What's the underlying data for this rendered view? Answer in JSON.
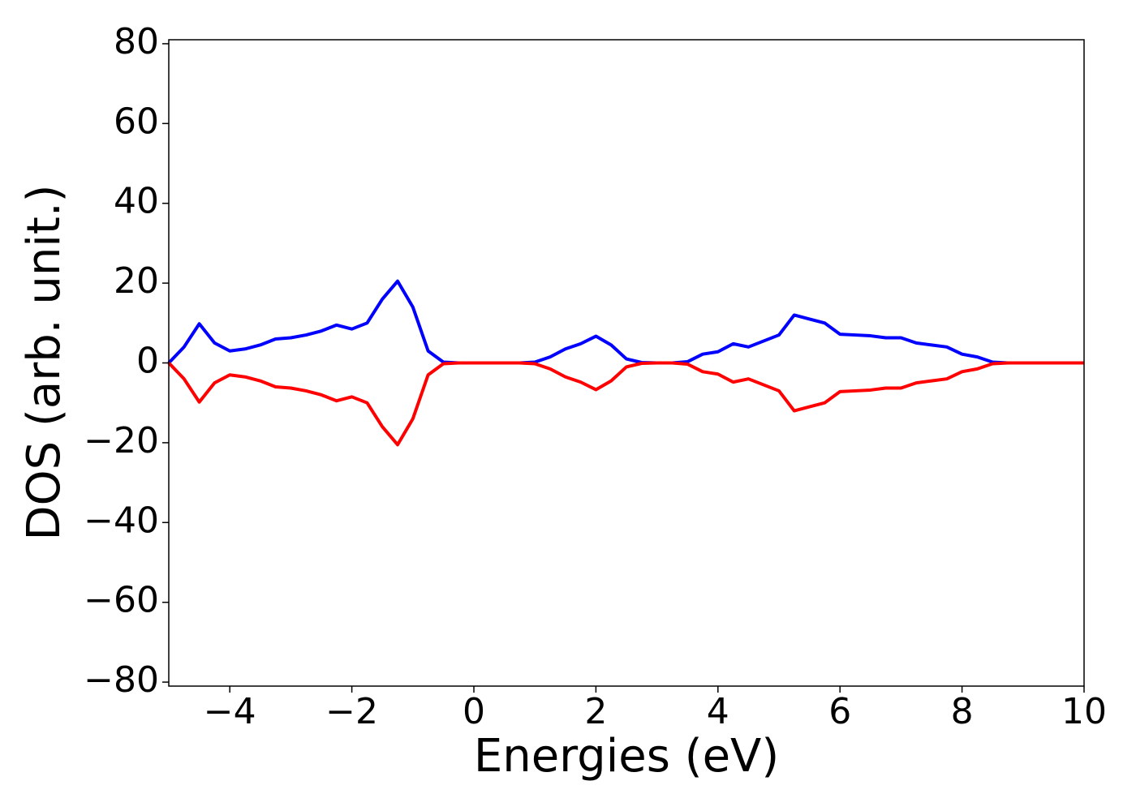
{
  "chart_data": {
    "type": "line",
    "xlabel": "Energies (eV)",
    "ylabel": "DOS (arb. unit.)",
    "x": [
      -5,
      -4.75,
      -4.5,
      -4.25,
      -4,
      -3.75,
      -3.5,
      -3.25,
      -3,
      -2.75,
      -2.5,
      -2.25,
      -2,
      -1.75,
      -1.5,
      -1.25,
      -1,
      -0.75,
      -0.5,
      -0.25,
      0,
      0.25,
      0.5,
      0.75,
      1,
      1.25,
      1.5,
      1.75,
      2,
      2.25,
      2.5,
      2.75,
      3,
      3.25,
      3.5,
      3.75,
      4,
      4.25,
      4.5,
      4.75,
      5,
      5.25,
      5.5,
      5.75,
      6,
      6.25,
      6.5,
      6.75,
      7,
      7.25,
      7.5,
      7.75,
      8,
      8.25,
      8.5,
      8.75,
      9,
      9.25,
      9.5,
      9.75,
      10
    ],
    "series": [
      {
        "color": "#0000ff",
        "values": [
          0,
          4,
          9.8,
          5,
          3,
          3.5,
          4.5,
          6,
          6.3,
          7,
          8,
          9.5,
          8.5,
          10,
          16,
          20.5,
          14,
          3,
          0.2,
          0,
          0,
          0,
          0,
          0,
          0.2,
          1.5,
          3.5,
          4.8,
          6.7,
          4.5,
          1,
          0.1,
          0,
          0,
          0.3,
          2.2,
          2.8,
          4.8,
          4,
          5.5,
          7,
          12,
          11,
          10,
          7.2,
          7,
          6.8,
          6.3,
          6.3,
          5,
          4.5,
          4,
          2.2,
          1.5,
          0.2,
          0,
          0,
          0,
          0,
          0,
          0
        ]
      },
      {
        "color": "#ff0000",
        "values": [
          0,
          -4,
          -9.8,
          -5,
          -3,
          -3.5,
          -4.5,
          -6,
          -6.3,
          -7,
          -8,
          -9.5,
          -8.5,
          -10,
          -16,
          -20.5,
          -14,
          -3,
          -0.2,
          0,
          0,
          0,
          0,
          0,
          -0.2,
          -1.5,
          -3.5,
          -4.8,
          -6.7,
          -4.5,
          -1,
          -0.1,
          0,
          0,
          -0.3,
          -2.2,
          -2.8,
          -4.8,
          -4,
          -5.5,
          -7,
          -12,
          -11,
          -10,
          -7.2,
          -7,
          -6.8,
          -6.3,
          -6.3,
          -5,
          -4.5,
          -4,
          -2.2,
          -1.5,
          -0.2,
          0,
          0,
          0,
          0,
          0,
          0
        ]
      }
    ],
    "xlim": [
      -5,
      10
    ],
    "xticks": [
      {
        "value": -4,
        "label": "−4"
      },
      {
        "value": -2,
        "label": "−2"
      },
      0,
      2,
      4,
      6,
      8,
      10
    ],
    "ylim": [
      -81,
      81
    ],
    "yticks": [
      {
        "value": -80,
        "label": "−80"
      },
      {
        "value": -60,
        "label": "−60"
      },
      {
        "value": -40,
        "label": "−40"
      },
      {
        "value": -20,
        "label": "−20"
      },
      0,
      20,
      40,
      60,
      80
    ]
  }
}
